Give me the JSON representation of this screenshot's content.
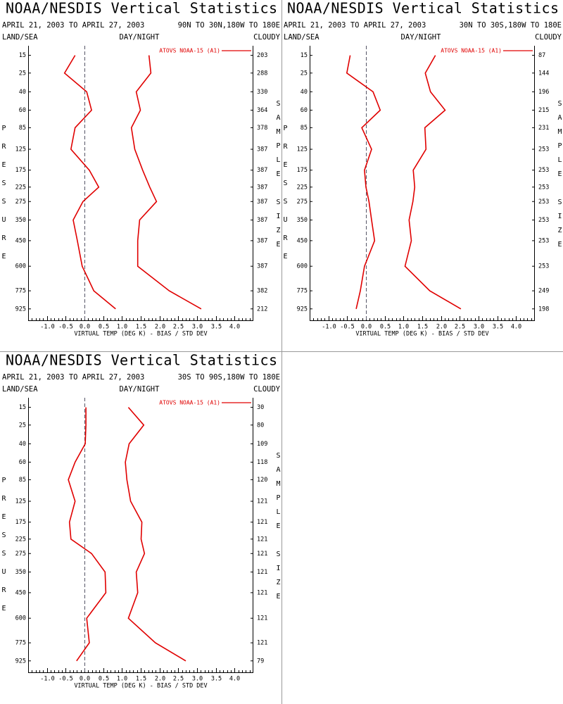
{
  "chart_data": [
    {
      "type": "line",
      "title": "NOAA/NESDIS Vertical Statistics",
      "subtitle": "APRIL 21, 2003 TO APRIL 27, 2003",
      "region": "90N TO 30N,180W TO 180E",
      "left_header": "LAND/SEA",
      "center_header": "DAY/NIGHT",
      "right_header": "CLOUDY",
      "ylabel": "PRESSURE",
      "y2label": "SAMPLE SIZE",
      "xlabel": "VIRTUAL TEMP (DEG K) - BIAS / STD DEV",
      "legend": "ATOVS NOAA-15 (A1)",
      "yticks": [
        15,
        25,
        40,
        60,
        85,
        125,
        175,
        225,
        275,
        350,
        450,
        600,
        775,
        925
      ],
      "sample_size": [
        203,
        288,
        330,
        364,
        378,
        387,
        387,
        387,
        387,
        387,
        387,
        387,
        382,
        212
      ],
      "series": [
        {
          "color": "#e00000",
          "values": [
            -0.25,
            -0.53,
            0.06,
            0.19,
            -0.25,
            -0.36,
            0.13,
            0.38,
            -0.04,
            -0.3,
            -0.19,
            -0.06,
            0.25,
            0.83
          ]
        },
        {
          "color": "#e00000",
          "values": [
            1.72,
            1.77,
            1.38,
            1.49,
            1.25,
            1.34,
            1.55,
            1.74,
            1.92,
            1.47,
            1.42,
            1.42,
            2.26,
            3.11
          ]
        }
      ],
      "xlim": [
        -1.5,
        4.5
      ],
      "xticks": [
        {
          "value": -1,
          "label": "-1.0"
        },
        {
          "value": -0.5,
          "label": "-0.5"
        },
        {
          "value": 0,
          "label": "0.0"
        },
        {
          "value": 0.5,
          "label": "0.5"
        },
        {
          "value": 1,
          "label": "1.0"
        },
        {
          "value": 1.5,
          "label": "1.5"
        },
        {
          "value": 2,
          "label": "2.0"
        },
        {
          "value": 2.5,
          "label": "2.5"
        },
        {
          "value": 3,
          "label": "3.0"
        },
        {
          "value": 3.5,
          "label": "3.5"
        },
        {
          "value": 4,
          "label": "4.0"
        }
      ],
      "x_minor_step": 0.1,
      "ylim": [
        11,
        1030
      ],
      "y_scale": "pow",
      "y_exponent": 0.286,
      "y_inverted": true,
      "zero_line": true
    },
    {
      "type": "line",
      "title": "NOAA/NESDIS Vertical Statistics",
      "subtitle": "APRIL 21, 2003 TO APRIL 27, 2003",
      "region": "30N TO 30S,180W TO 180E",
      "left_header": "LAND/SEA",
      "center_header": "DAY/NIGHT",
      "right_header": "CLOUDY",
      "ylabel": "PRESSURE",
      "y2label": "SAMPLE SIZE",
      "xlabel": "VIRTUAL TEMP (DEG K) - BIAS / STD DEV",
      "legend": "ATOVS NOAA-15 (A1)",
      "yticks": [
        15,
        25,
        40,
        60,
        85,
        125,
        175,
        225,
        275,
        350,
        450,
        600,
        775,
        925
      ],
      "sample_size": [
        87,
        144,
        196,
        215,
        231,
        253,
        253,
        253,
        253,
        253,
        253,
        253,
        249,
        198
      ],
      "series": [
        {
          "color": "#e00000",
          "values": [
            -0.42,
            -0.51,
            0.19,
            0.38,
            -0.11,
            0.15,
            -0.04,
            0,
            0.08,
            0.15,
            0.23,
            -0.04,
            -0.15,
            -0.26
          ]
        },
        {
          "color": "#e00000",
          "values": [
            1.85,
            1.58,
            1.72,
            2.11,
            1.57,
            1.6,
            1.26,
            1.3,
            1.25,
            1.15,
            1.21,
            1.04,
            1.7,
            2.53
          ]
        }
      ],
      "xlim": [
        -1.5,
        4.5
      ],
      "xticks": [
        {
          "value": -1,
          "label": "-1.0"
        },
        {
          "value": -0.5,
          "label": "-0.5"
        },
        {
          "value": 0,
          "label": "0.0"
        },
        {
          "value": 0.5,
          "label": "0.5"
        },
        {
          "value": 1,
          "label": "1.0"
        },
        {
          "value": 1.5,
          "label": "1.5"
        },
        {
          "value": 2,
          "label": "2.0"
        },
        {
          "value": 2.5,
          "label": "2.5"
        },
        {
          "value": 3,
          "label": "3.0"
        },
        {
          "value": 3.5,
          "label": "3.5"
        },
        {
          "value": 4,
          "label": "4.0"
        }
      ],
      "x_minor_step": 0.1,
      "ylim": [
        11,
        1030
      ],
      "y_scale": "pow",
      "y_exponent": 0.286,
      "y_inverted": true,
      "zero_line": true
    },
    {
      "type": "line",
      "title": "NOAA/NESDIS Vertical Statistics",
      "subtitle": "APRIL 21, 2003 TO APRIL 27, 2003",
      "region": "30S TO 90S,180W TO 180E",
      "left_header": "LAND/SEA",
      "center_header": "DAY/NIGHT",
      "right_header": "CLOUDY",
      "ylabel": "PRESSURE",
      "y2label": "SAMPLE SIZE",
      "xlabel": "VIRTUAL TEMP (DEG K) - BIAS / STD DEV",
      "legend": "ATOVS NOAA-15 (A1)",
      "yticks": [
        15,
        25,
        40,
        60,
        85,
        125,
        175,
        225,
        275,
        350,
        450,
        600,
        775,
        925
      ],
      "sample_size": [
        30,
        80,
        109,
        118,
        120,
        121,
        121,
        121,
        121,
        121,
        121,
        121,
        121,
        79
      ],
      "series": [
        {
          "color": "#e00000",
          "values": [
            0.04,
            0.04,
            0.02,
            -0.25,
            -0.43,
            -0.25,
            -0.4,
            -0.36,
            0.19,
            0.55,
            0.57,
            0.06,
            0.13,
            -0.21
          ]
        },
        {
          "color": "#e00000",
          "values": [
            1.17,
            1.58,
            1.19,
            1.09,
            1.13,
            1.23,
            1.53,
            1.51,
            1.6,
            1.38,
            1.42,
            1.17,
            1.89,
            2.7
          ]
        }
      ],
      "xlim": [
        -1.5,
        4.5
      ],
      "xticks": [
        {
          "value": -1,
          "label": "-1.0"
        },
        {
          "value": -0.5,
          "label": "-0.5"
        },
        {
          "value": 0,
          "label": "0.0"
        },
        {
          "value": 0.5,
          "label": "0.5"
        },
        {
          "value": 1,
          "label": "1.0"
        },
        {
          "value": 1.5,
          "label": "1.5"
        },
        {
          "value": 2,
          "label": "2.0"
        },
        {
          "value": 2.5,
          "label": "2.5"
        },
        {
          "value": 3,
          "label": "3.0"
        },
        {
          "value": 3.5,
          "label": "3.5"
        },
        {
          "value": 4,
          "label": "4.0"
        }
      ],
      "x_minor_step": 0.1,
      "ylim": [
        11,
        1030
      ],
      "y_scale": "pow",
      "y_exponent": 0.286,
      "y_inverted": true,
      "zero_line": true
    }
  ]
}
